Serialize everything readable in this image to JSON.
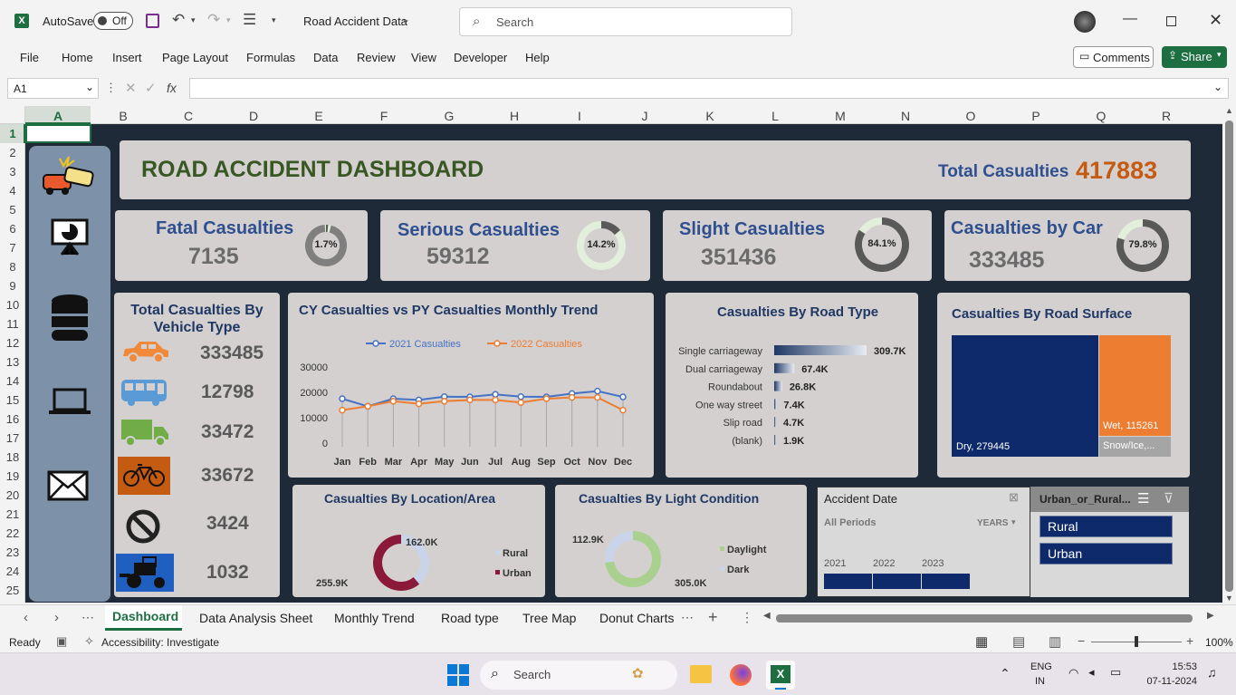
{
  "titlebar": {
    "autosave_label": "AutoSave",
    "autosave_state": "Off",
    "doc_title": "Road Accident Data",
    "search_placeholder": "Search"
  },
  "menu": {
    "items": [
      "File",
      "Home",
      "Insert",
      "Page Layout",
      "Formulas",
      "Data",
      "Review",
      "View",
      "Developer",
      "Help"
    ],
    "comments_label": "Comments",
    "share_label": "Share"
  },
  "formula": {
    "name_box": "A1",
    "fx": "fx",
    "content": ""
  },
  "columns": [
    "A",
    "B",
    "C",
    "D",
    "E",
    "F",
    "G",
    "H",
    "I",
    "J",
    "K",
    "L",
    "M",
    "N",
    "O",
    "P",
    "Q",
    "R"
  ],
  "rows": [
    "1",
    "2",
    "3",
    "4",
    "5",
    "6",
    "7",
    "8",
    "9",
    "10",
    "11",
    "12",
    "13",
    "14",
    "15",
    "16",
    "17",
    "18",
    "19",
    "20",
    "21",
    "22",
    "23",
    "24",
    "25"
  ],
  "dashboard": {
    "title": "ROAD ACCIDENT DASHBOARD",
    "total_label": "Total Casualties",
    "total_value": "417883",
    "kpis": [
      {
        "title": "Fatal Casualties",
        "value": "7135",
        "pct": "1.7%",
        "fraction": 0.017
      },
      {
        "title": "Serious Casualties",
        "value": "59312",
        "pct": "14.2%",
        "fraction": 0.142
      },
      {
        "title": "Slight Casualties",
        "value": "351436",
        "pct": "84.1%",
        "fraction": 0.841
      },
      {
        "title": "Casualties by Car",
        "value": "333485",
        "pct": "79.8%",
        "fraction": 0.798
      }
    ],
    "vehicle": {
      "title": "Total Casualties By Vehicle Type",
      "items": [
        {
          "icon": "car-icon",
          "value": "333485"
        },
        {
          "icon": "bus-icon",
          "value": "12798"
        },
        {
          "icon": "truck-icon",
          "value": "33472"
        },
        {
          "icon": "bicycle-icon",
          "value": "33672"
        },
        {
          "icon": "no-entry-icon",
          "value": "3424"
        },
        {
          "icon": "tractor-icon",
          "value": "1032"
        }
      ]
    },
    "sidebar_icons": [
      "car-crash-icon",
      "presentation-chart-icon",
      "database-icon",
      "laptop-icon",
      "mail-icon"
    ],
    "trend_title": "CY Casualties vs PY Casualties Monthly Trend",
    "road_type_title": "Casualties By Road Type",
    "road_surface_title": "Casualties By Road Surface",
    "location_title": "Casualties By Location/Area",
    "light_title": "Casualties By Light Condition",
    "slicer_date": {
      "title": "Accident Date",
      "periods": "All Periods",
      "level": "YEARS",
      "years": [
        "2021",
        "2022",
        "2023"
      ]
    },
    "slicer_urban": {
      "title": "Urban_or_Rural...",
      "items": [
        "Rural",
        "Urban"
      ]
    }
  },
  "chart_data": [
    {
      "type": "line",
      "title": "CY Casualties vs PY Casualties Monthly Trend",
      "categories": [
        "Jan",
        "Feb",
        "Mar",
        "Apr",
        "May",
        "Jun",
        "Jul",
        "Aug",
        "Sep",
        "Oct",
        "Nov",
        "Dec"
      ],
      "series": [
        {
          "name": "2021 Casualties",
          "color": "#4472c4",
          "values": [
            17500,
            14500,
            17500,
            17000,
            18300,
            18200,
            19200,
            18300,
            18200,
            19500,
            20500,
            18200
          ]
        },
        {
          "name": "2022 Casualties",
          "color": "#ed7d31",
          "values": [
            13000,
            14500,
            16500,
            15500,
            16500,
            17000,
            17000,
            16000,
            17500,
            18000,
            18000,
            13000
          ]
        }
      ],
      "ylim": [
        0,
        30000
      ],
      "yticks": [
        "0",
        "10000",
        "20000",
        "30000"
      ],
      "legend": "top"
    },
    {
      "type": "bar",
      "title": "Casualties By Road Type",
      "categories": [
        "Single carriageway",
        "Dual carriageway",
        "Roundabout",
        "One way street",
        "Slip road",
        "(blank)"
      ],
      "values": [
        309.7,
        67.4,
        26.8,
        7.4,
        4.7,
        1.9
      ],
      "labels": [
        "309.7K",
        "67.4K",
        "26.8K",
        "7.4K",
        "4.7K",
        "1.9K"
      ],
      "unit": "K"
    },
    {
      "type": "heatmap",
      "title": "Casualties By Road Surface",
      "categories": [
        "Dry",
        "Wet",
        "Snow/Ice,..."
      ],
      "values": [
        279445,
        115261,
        null
      ],
      "labels": [
        "Dry, 279445",
        "Wet, 115261",
        "Snow/Ice,..."
      ]
    },
    {
      "type": "pie",
      "title": "Casualties By Location/Area",
      "categories": [
        "Rural",
        "Urban"
      ],
      "values": [
        162.0,
        255.9
      ],
      "labels": [
        "162.0K",
        "255.9K"
      ],
      "legend": "right"
    },
    {
      "type": "pie",
      "title": "Casualties By Light Condition",
      "categories": [
        "Daylight",
        "Dark"
      ],
      "values": [
        305.0,
        112.9
      ],
      "labels": [
        "305.0K",
        "112.9K"
      ],
      "legend": "right"
    }
  ],
  "sheets": {
    "tabs": [
      "Dashboard",
      "Data Analysis Sheet",
      "Monthly Trend",
      "Road type",
      "Tree Map",
      "Donut Charts"
    ],
    "active": "Dashboard"
  },
  "status": {
    "ready": "Ready",
    "accessibility": "Accessibility: Investigate",
    "zoom": "100%"
  },
  "taskbar": {
    "search": "Search",
    "lang1": "ENG",
    "lang2": "IN",
    "time": "15:53",
    "date": "07-11-2024"
  }
}
